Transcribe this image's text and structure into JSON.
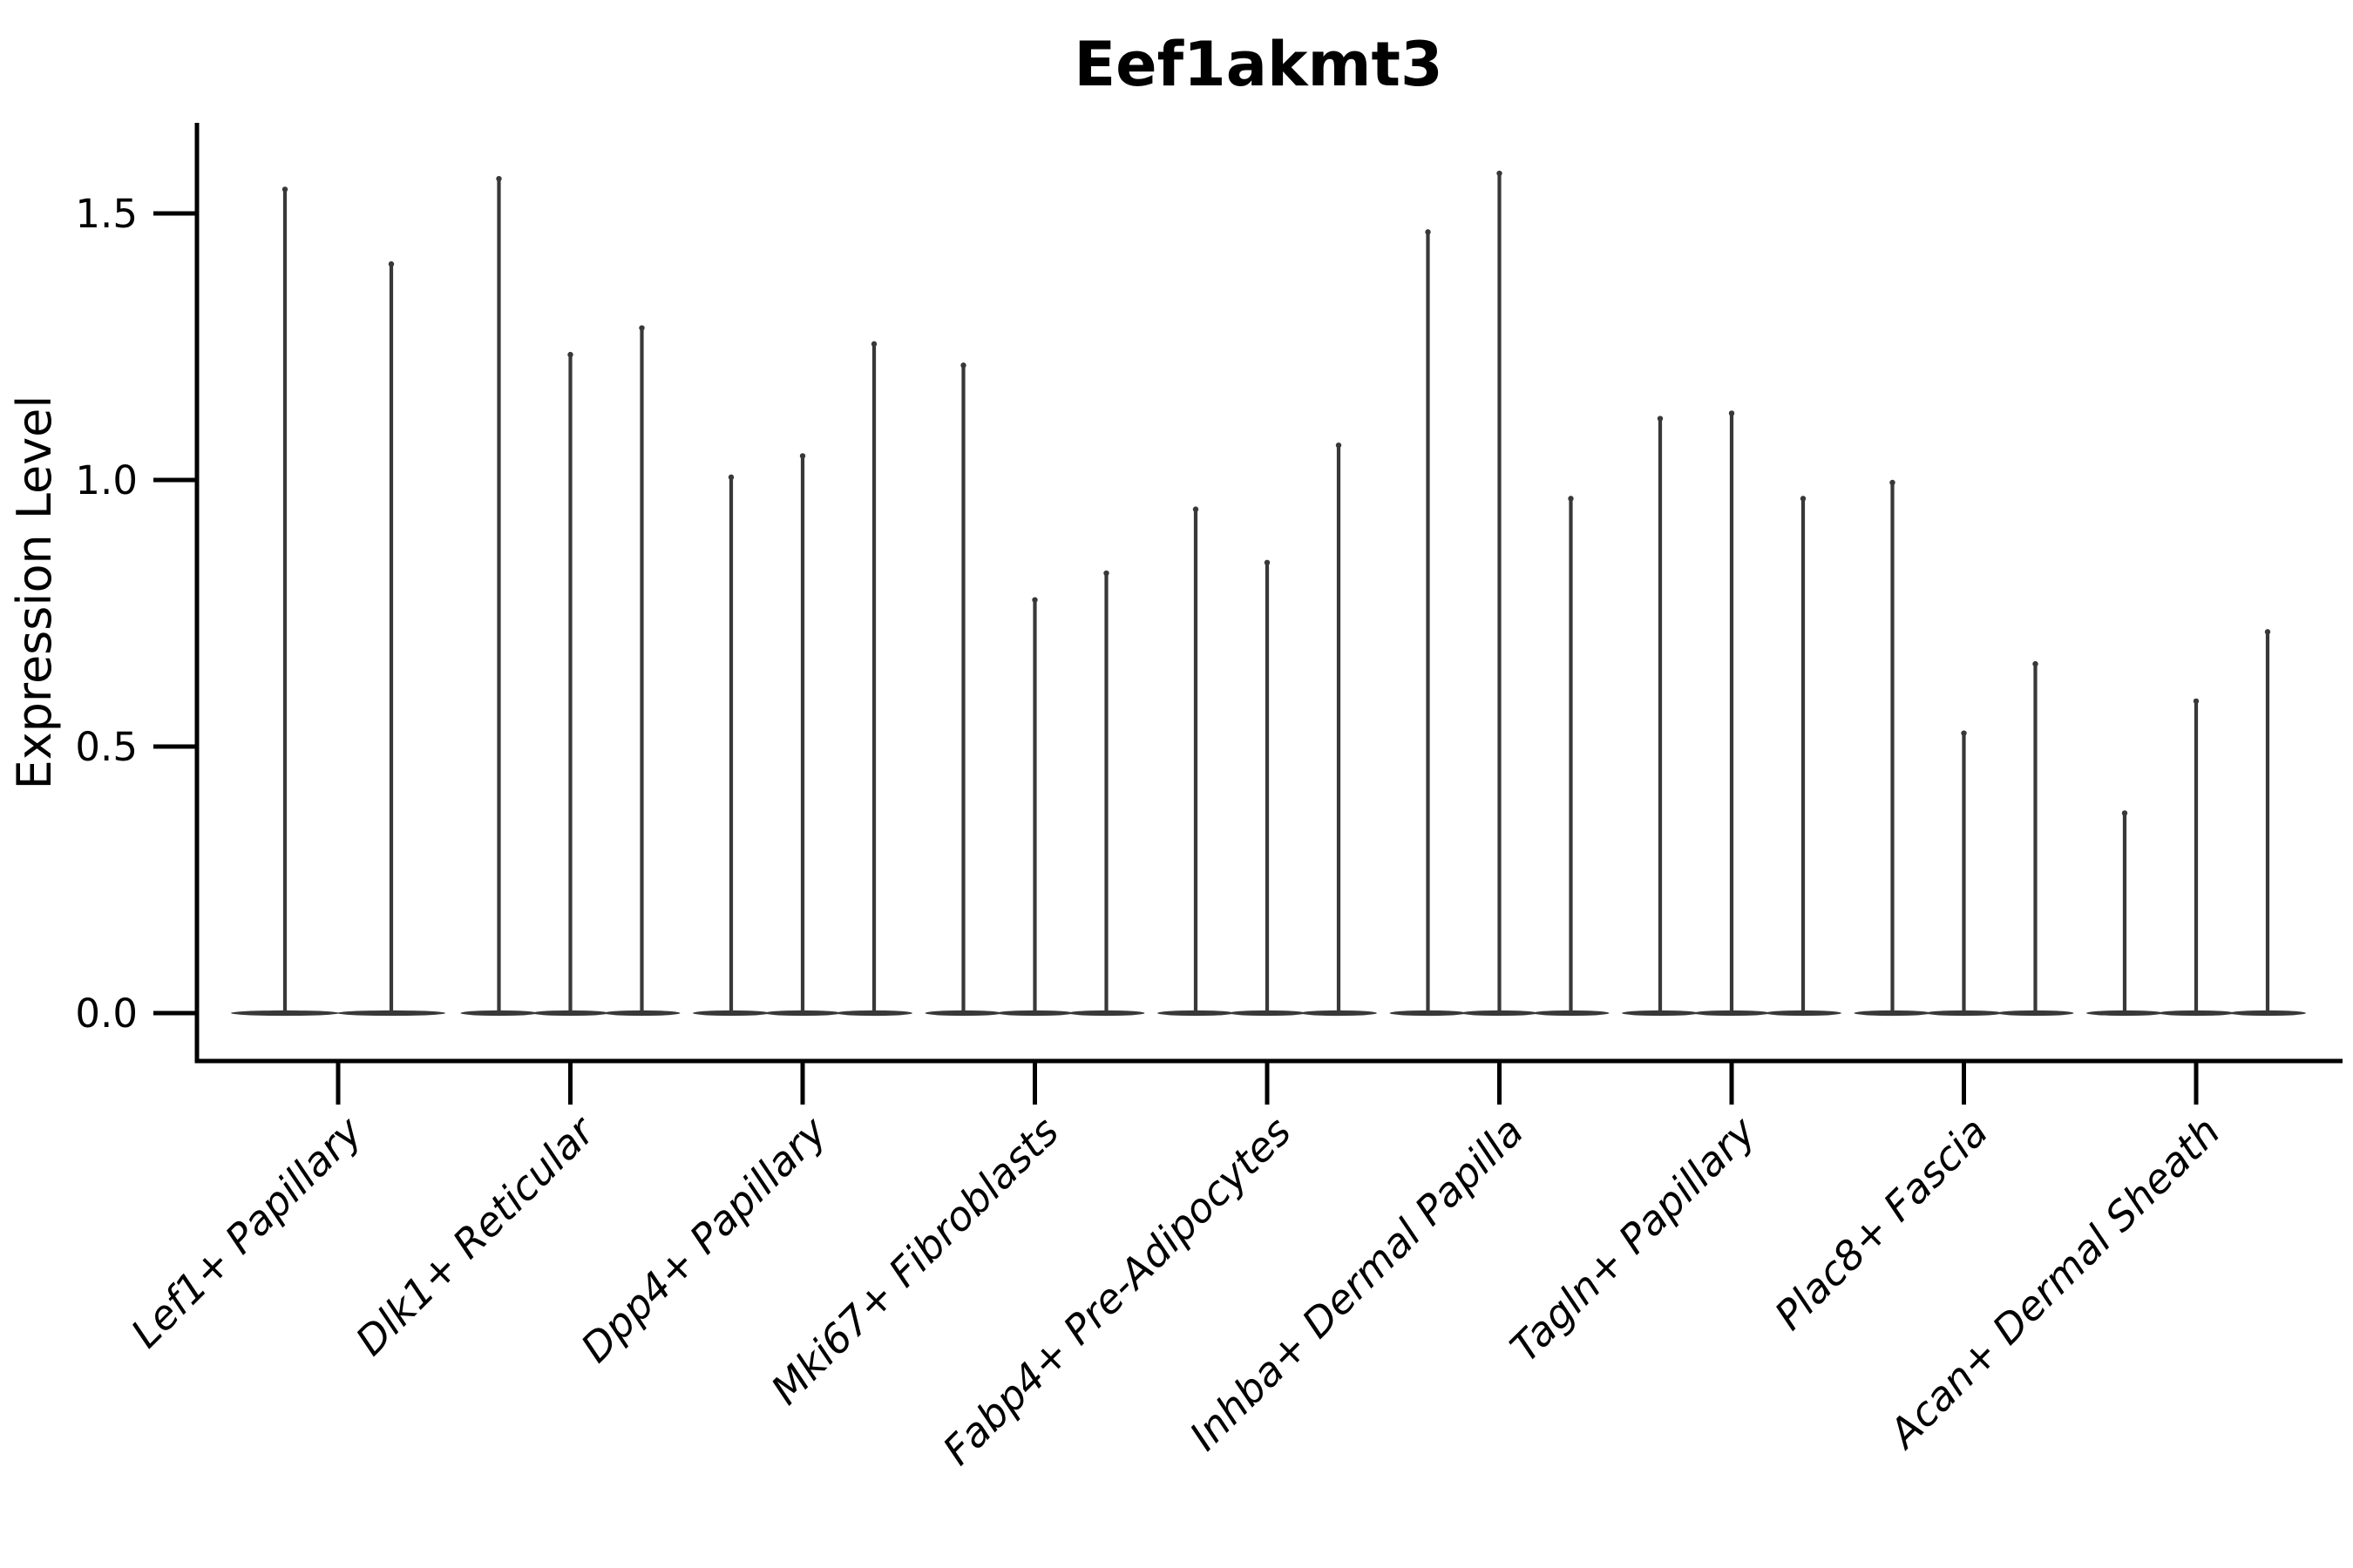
{
  "chart_data": {
    "type": "violin",
    "title": "Eef1akmt3",
    "xlabel": "",
    "ylabel": "Expression Level",
    "yticks": [
      "0.0",
      "0.5",
      "1.0",
      "1.5"
    ],
    "ytick_values": [
      0.0,
      0.5,
      1.0,
      1.5
    ],
    "ylim": [
      -0.09,
      1.67
    ],
    "grid": false,
    "legend": null,
    "categories": [
      "Lef1+ Papillary",
      "Dlk1+ Reticular",
      "Dpp4+ Papillary",
      "Mki67+ Fibroblasts",
      "Fabp4+ Pre-Adipocytes",
      "Inhba+ Dermal Papilla",
      "Tagln+ Papillary",
      "Plac8+ Fascia",
      "Acan+ Dermal Sheath"
    ],
    "groups": [
      {
        "category": "Lef1+ Papillary",
        "violin_max_values": [
          1.55,
          1.41
        ]
      },
      {
        "category": "Dlk1+ Reticular",
        "violin_max_values": [
          1.57,
          1.24,
          1.29
        ]
      },
      {
        "category": "Dpp4+ Papillary",
        "violin_max_values": [
          1.01,
          1.05,
          1.26
        ]
      },
      {
        "category": "Mki67+ Fibroblasts",
        "violin_max_values": [
          1.22,
          0.78,
          0.83
        ]
      },
      {
        "category": "Fabp4+ Pre-Adipocytes",
        "violin_max_values": [
          0.95,
          0.85,
          1.07
        ]
      },
      {
        "category": "Inhba+ Dermal Papilla",
        "violin_max_values": [
          1.47,
          1.58,
          0.97
        ]
      },
      {
        "category": "Tagln+ Papillary",
        "violin_max_values": [
          1.12,
          1.13,
          0.97
        ]
      },
      {
        "category": "Plac8+ Fascia",
        "violin_max_values": [
          1.0,
          0.53,
          0.66
        ]
      },
      {
        "category": "Acan+ Dermal Sheath",
        "violin_max_values": [
          0.38,
          0.59,
          0.72
        ]
      }
    ],
    "violin_shape_note": "Each violin is a needle shape: flat lens-shaped base at expression 0 with a thin spike rising to the max value",
    "colors": {
      "violin": "#383838",
      "axis": "#000000",
      "text": "#000000",
      "background": "#ffffff"
    }
  }
}
